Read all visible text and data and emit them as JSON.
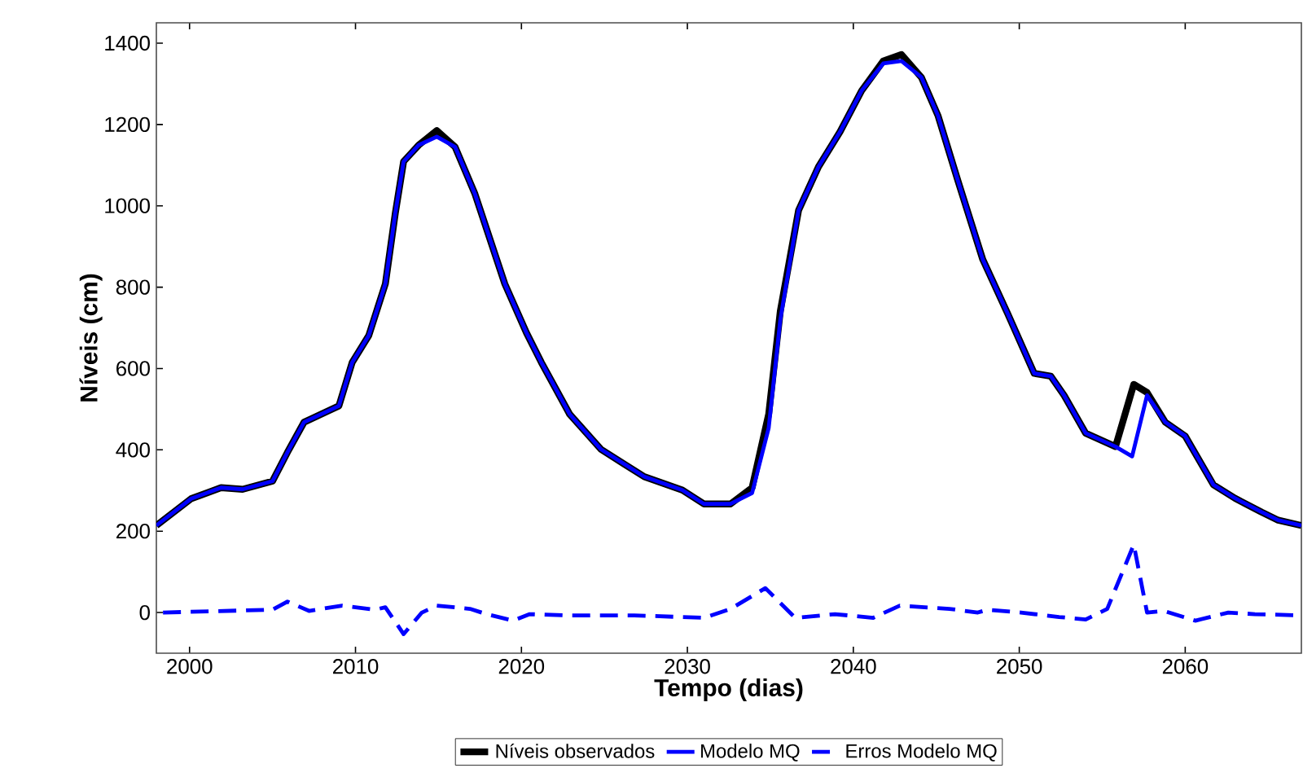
{
  "chart_data": {
    "type": "line",
    "xlabel": "Tempo (dias)",
    "ylabel": "Níveis (cm)",
    "xlim": [
      1998,
      2067
    ],
    "ylim": [
      -100,
      1450
    ],
    "xticks": [
      2000,
      2010,
      2020,
      2030,
      2040,
      2050,
      2060
    ],
    "yticks": [
      0,
      200,
      400,
      600,
      800,
      1000,
      1200,
      1400
    ],
    "legend": "bottom",
    "series": [
      {
        "name": "Níveis observados",
        "color": "#000000",
        "line_style": "solid",
        "x": [
          1998,
          2000.1,
          2001.9,
          2003.2,
          2005,
          2005.9,
          2006.9,
          2009,
          2009.8,
          2010.8,
          2011.8,
          2012.4,
          2012.9,
          2013.8,
          2014.9,
          2016,
          2017.2,
          2019,
          2020.3,
          2021.2,
          2022.9,
          2024.8,
          2027.4,
          2029.7,
          2031,
          2032.6,
          2033.9,
          2034.9,
          2035.6,
          2036.7,
          2037.9,
          2039.2,
          2040.5,
          2041.8,
          2042.9,
          2044.1,
          2045.1,
          2046.3,
          2047.8,
          2049.3,
          2050.9,
          2051.9,
          2052.7,
          2054,
          2055.8,
          2056.9,
          2057.7,
          2058.8,
          2060,
          2061.7,
          2063,
          2064.6,
          2065.6,
          2067
        ],
        "values": [
          214,
          280,
          307,
          303,
          323,
          394,
          468,
          508,
          615,
          681,
          808,
          982,
          1109,
          1149,
          1185,
          1145,
          1029,
          808,
          688,
          615,
          488,
          401,
          334,
          301,
          267,
          267,
          307,
          488,
          741,
          989,
          1096,
          1182,
          1283,
          1356,
          1372,
          1316,
          1222,
          1062,
          868,
          735,
          588,
          581,
          534,
          441,
          408,
          561,
          541,
          468,
          434,
          314,
          281,
          247,
          227,
          214
        ]
      },
      {
        "name": "Modelo MQ",
        "color": "#0000ff",
        "line_style": "solid",
        "x": [
          1998,
          2000.1,
          2001.9,
          2003.2,
          2005,
          2005.9,
          2006.9,
          2009,
          2009.8,
          2010.8,
          2011.8,
          2012.4,
          2012.9,
          2013.8,
          2014.9,
          2016,
          2017.2,
          2019,
          2020.3,
          2021.2,
          2022.9,
          2024.8,
          2027.4,
          2029.7,
          2031,
          2032.6,
          2033.9,
          2034.9,
          2035.6,
          2036.7,
          2037.9,
          2039.2,
          2040.5,
          2041.8,
          2042.9,
          2044.1,
          2045.1,
          2046.3,
          2047.8,
          2049.3,
          2050.9,
          2051.9,
          2052.7,
          2054,
          2055.8,
          2056.8,
          2057.7,
          2058.8,
          2060,
          2061.7,
          2063,
          2064.6,
          2065.6,
          2067
        ],
        "values": [
          214,
          280,
          307,
          303,
          323,
          394,
          468,
          508,
          615,
          681,
          808,
          982,
          1109,
          1149,
          1170,
          1145,
          1029,
          808,
          688,
          615,
          488,
          401,
          334,
          301,
          267,
          267,
          294,
          454,
          720,
          989,
          1096,
          1182,
          1283,
          1350,
          1356,
          1316,
          1222,
          1062,
          868,
          735,
          588,
          581,
          534,
          441,
          408,
          384,
          534,
          468,
          434,
          314,
          281,
          247,
          227,
          214
        ]
      },
      {
        "name": "Erros Modelo MQ",
        "color": "#0000ff",
        "line_style": "dashed",
        "x": [
          1998.4,
          2005,
          2005.9,
          2007.2,
          2009.2,
          2011.2,
          2011.8,
          2012.9,
          2014,
          2014.9,
          2016.9,
          2017.9,
          2019.5,
          2020.5,
          2022.9,
          2026.8,
          2031,
          2032.6,
          2034.7,
          2036.5,
          2038.9,
          2041.2,
          2042.8,
          2045.8,
          2047.5,
          2048.1,
          2050.1,
          2052.4,
          2054,
          2055.3,
          2056.9,
          2057.7,
          2058.7,
          2060.6,
          2062.6,
          2064.2,
          2067
        ],
        "values": [
          0,
          7,
          27,
          4,
          17,
          7,
          13,
          -53,
          0,
          17,
          9,
          -4,
          -20,
          -4,
          -7,
          -7,
          -13,
          9,
          60,
          -13,
          -4,
          -13,
          17,
          9,
          0,
          7,
          0,
          -11,
          -17,
          9,
          167,
          0,
          4,
          -20,
          0,
          -4,
          -7
        ]
      }
    ]
  }
}
